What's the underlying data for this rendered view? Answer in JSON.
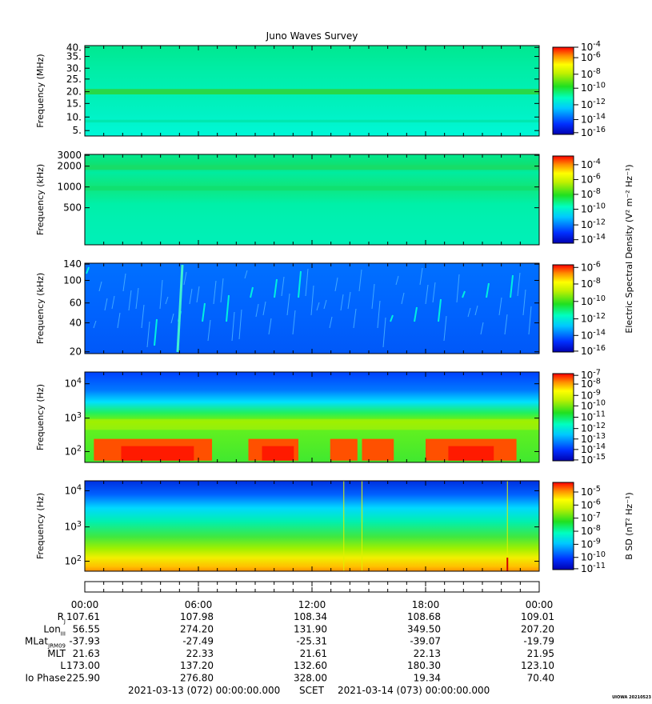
{
  "title": "Juno Waves Survey",
  "footer": {
    "start": "2021-03-13 (072) 00:00:00.000",
    "label": "SCET",
    "end": "2021-03-14 (073) 00:00:00.000",
    "credit": "UIOWA 20210523"
  },
  "chart_data": [
    {
      "type": "heatmap",
      "ylabel": "Frequency (MHz)",
      "yticks": [
        "40.",
        "35.",
        "30.",
        "25.",
        "20.",
        "15.",
        "10.",
        "5."
      ],
      "colorbar_ticks": [
        [
          "10",
          "-4"
        ],
        [
          "10",
          "-6"
        ],
        [
          "10",
          "-8"
        ],
        [
          "10",
          "-10"
        ],
        [
          "10",
          "-12"
        ],
        [
          "10",
          "-14"
        ],
        [
          "10",
          "-16"
        ]
      ],
      "colorbar_label": ""
    },
    {
      "type": "heatmap",
      "ylabel": "Frequency (kHz)",
      "yticks": [
        "3000",
        "2000",
        "1000",
        "500"
      ],
      "colorbar_ticks": [
        [
          "10",
          "-4"
        ],
        [
          "10",
          "-6"
        ],
        [
          "10",
          "-8"
        ],
        [
          "10",
          "-10"
        ],
        [
          "10",
          "-12"
        ],
        [
          "10",
          "-14"
        ]
      ],
      "colorbar_label": "Electric Spectral Density (V² m⁻² Hz⁻¹)"
    },
    {
      "type": "heatmap",
      "ylabel": "Frequency (kHz)",
      "yticks": [
        "140",
        "100",
        "60",
        "40",
        "20"
      ],
      "colorbar_ticks": [
        [
          "10",
          "-6"
        ],
        [
          "10",
          "-8"
        ],
        [
          "10",
          "-10"
        ],
        [
          "10",
          "-12"
        ],
        [
          "10",
          "-14"
        ],
        [
          "10",
          "-16"
        ]
      ],
      "colorbar_label": ""
    },
    {
      "type": "heatmap",
      "ylabel": "Frequency (Hz)",
      "yticks": [
        [
          "10",
          "4"
        ],
        [
          "10",
          "3"
        ],
        [
          "10",
          "2"
        ]
      ],
      "colorbar_ticks": [
        [
          "10",
          "-7"
        ],
        [
          "10",
          "-8"
        ],
        [
          "10",
          "-9"
        ],
        [
          "10",
          "-10"
        ],
        [
          "10",
          "-11"
        ],
        [
          "10",
          "-12"
        ],
        [
          "10",
          "-13"
        ],
        [
          "10",
          "-14"
        ],
        [
          "10",
          "-15"
        ]
      ],
      "colorbar_label": ""
    },
    {
      "type": "heatmap",
      "ylabel": "Frequency (Hz)",
      "yticks": [
        [
          "10",
          "4"
        ],
        [
          "10",
          "3"
        ],
        [
          "10",
          "2"
        ]
      ],
      "colorbar_ticks": [
        [
          "10",
          "-5"
        ],
        [
          "10",
          "-6"
        ],
        [
          "10",
          "-7"
        ],
        [
          "10",
          "-8"
        ],
        [
          "10",
          "-9"
        ],
        [
          "10",
          "-10"
        ],
        [
          "10",
          "-11"
        ]
      ],
      "colorbar_label": "B SD (nT² Hz⁻¹)"
    }
  ],
  "ephemeris": {
    "times": [
      "00:00",
      "06:00",
      "12:00",
      "18:00",
      "00:00"
    ],
    "rows": [
      {
        "label": "R",
        "sub": "J",
        "values": [
          "107.61",
          "107.98",
          "108.34",
          "108.68",
          "109.01"
        ]
      },
      {
        "label": "Lon",
        "sub": "III",
        "values": [
          "56.55",
          "274.20",
          "131.90",
          "349.50",
          "207.20"
        ]
      },
      {
        "label": "MLat",
        "sub": "JRM09",
        "values": [
          "-37.93",
          "-27.49",
          "-25.31",
          "-39.07",
          "-19.79"
        ]
      },
      {
        "label": "MLT",
        "sub": "",
        "values": [
          "21.63",
          "22.33",
          "21.61",
          "22.13",
          "21.95"
        ]
      },
      {
        "label": "L",
        "sub": "",
        "values": [
          "173.00",
          "137.20",
          "132.60",
          "180.30",
          "123.10"
        ]
      },
      {
        "label": "Io Phase",
        "sub": "",
        "values": [
          "225.90",
          "276.80",
          "328.00",
          "19.34",
          "70.40"
        ]
      }
    ]
  }
}
